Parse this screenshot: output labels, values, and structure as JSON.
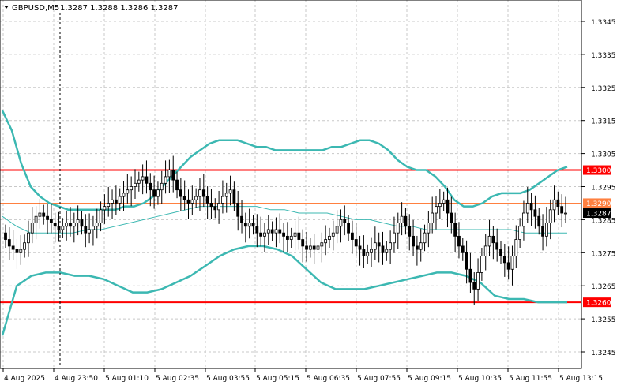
{
  "header": {
    "symbol_label": "GBPUSD,M5",
    "ohlc": "1.3287 1.3288 1.3286 1.3287"
  },
  "colors": {
    "background": "#ffffff",
    "grid": "#c8c8c8",
    "candles": "#000000",
    "bollinger": "#3cb8b2",
    "ma": "#3cb8b2",
    "resistance": "#ff0000",
    "pivot": "#ff8040",
    "current_price": "#000000"
  },
  "chart_data": {
    "type": "candlestick",
    "title": "GBPUSD,M5",
    "ylim": [
      1.324,
      1.3352
    ],
    "y_ticks": [
      "1.3345",
      "1.3335",
      "1.3325",
      "1.3315",
      "1.3305",
      "1.3295",
      "1.3285",
      "1.3275",
      "1.3265",
      "1.3255",
      "1.3245"
    ],
    "x_ticks": [
      "4 Aug 2025",
      "4 Aug 23:50",
      "5 Aug 01:10",
      "5 Aug 02:35",
      "5 Aug 03:55",
      "5 Aug 05:15",
      "5 Aug 06:35",
      "5 Aug 07:55",
      "5 Aug 09:15",
      "5 Aug 10:35",
      "5 Aug 11:55",
      "5 Aug 13:15"
    ],
    "levels": [
      {
        "value": 1.33,
        "label": "1.3300",
        "color": "#ff0000"
      },
      {
        "value": 1.329,
        "label": "1.3290",
        "color": "#ff8040"
      },
      {
        "value": 1.326,
        "label": "1.3260",
        "color": "#ff0000"
      }
    ],
    "current_price": {
      "value": 1.3287,
      "label": "1.3287"
    },
    "close_series": [
      1.3279,
      1.3277,
      1.3276,
      1.3275,
      1.3276,
      1.3278,
      1.3281,
      1.3284,
      1.3286,
      1.3287,
      1.3286,
      1.3285,
      1.3284,
      1.3283,
      1.3282,
      1.3283,
      1.3284,
      1.3283,
      1.3284,
      1.3285,
      1.3283,
      1.3281,
      1.3282,
      1.3283,
      1.3284,
      1.3288,
      1.3289,
      1.329,
      1.3291,
      1.329,
      1.3292,
      1.3293,
      1.3294,
      1.3295,
      1.3296,
      1.3297,
      1.3298,
      1.3296,
      1.3294,
      1.3292,
      1.3294,
      1.3296,
      1.3298,
      1.33,
      1.3297,
      1.3294,
      1.3292,
      1.3291,
      1.329,
      1.3291,
      1.3292,
      1.3294,
      1.3292,
      1.329,
      1.3289,
      1.3288,
      1.329,
      1.3292,
      1.3293,
      1.3294,
      1.329,
      1.3286,
      1.3284,
      1.3283,
      1.3284,
      1.3283,
      1.3281,
      1.328,
      1.3281,
      1.3282,
      1.3281,
      1.3282,
      1.3281,
      1.328,
      1.3279,
      1.328,
      1.3281,
      1.3279,
      1.3277,
      1.3276,
      1.3277,
      1.3276,
      1.3277,
      1.3278,
      1.3279,
      1.328,
      1.3281,
      1.3283,
      1.3285,
      1.3284,
      1.3281,
      1.3279,
      1.3277,
      1.3276,
      1.3274,
      1.3275,
      1.3276,
      1.3278,
      1.3277,
      1.3275,
      1.3276,
      1.3278,
      1.3281,
      1.3284,
      1.3286,
      1.3283,
      1.328,
      1.3277,
      1.3276,
      1.3278,
      1.3281,
      1.3284,
      1.3287,
      1.3289,
      1.329,
      1.3291,
      1.3287,
      1.3284,
      1.328,
      1.3277,
      1.3275,
      1.327,
      1.3266,
      1.3264,
      1.3269,
      1.3274,
      1.3277,
      1.328,
      1.3278,
      1.3276,
      1.3274,
      1.3272,
      1.327,
      1.3274,
      1.3279,
      1.3283,
      1.3287,
      1.329,
      1.3288,
      1.3286,
      1.3283,
      1.328,
      1.3284,
      1.3288,
      1.3291,
      1.3289,
      1.3287,
      1.3287
    ],
    "bollinger_upper": [
      1.3318,
      1.3312,
      1.3302,
      1.3295,
      1.3292,
      1.329,
      1.3289,
      1.3288,
      1.3288,
      1.3288,
      1.3288,
      1.3288,
      1.3288,
      1.3289,
      1.3289,
      1.329,
      1.3292,
      1.3295,
      1.3298,
      1.3301,
      1.3304,
      1.3306,
      1.3308,
      1.3309,
      1.3309,
      1.3309,
      1.3308,
      1.3307,
      1.3307,
      1.3306,
      1.3306,
      1.3306,
      1.3306,
      1.3306,
      1.3306,
      1.3307,
      1.3307,
      1.3308,
      1.3309,
      1.3309,
      1.3308,
      1.3306,
      1.3303,
      1.3301,
      1.33,
      1.33,
      1.3298,
      1.3295,
      1.3291,
      1.3289,
      1.3289,
      1.329,
      1.3292,
      1.3293,
      1.3293,
      1.3293,
      1.3294,
      1.3296,
      1.3298,
      1.33,
      1.3301
    ],
    "bollinger_middle": [
      1.3286,
      1.3283,
      1.3281,
      1.3281,
      1.3281,
      1.3281,
      1.3282,
      1.3282,
      1.3283,
      1.3284,
      1.3285,
      1.3286,
      1.3287,
      1.3288,
      1.3289,
      1.3289,
      1.3289,
      1.3289,
      1.3289,
      1.3288,
      1.3288,
      1.3287,
      1.3287,
      1.3287,
      1.3286,
      1.3285,
      1.3285,
      1.3284,
      1.3283,
      1.3283,
      1.3282,
      1.3282,
      1.3282,
      1.3282,
      1.3282,
      1.3282,
      1.3282,
      1.3281,
      1.3281,
      1.3281,
      1.3281
    ],
    "bollinger_lower": [
      1.325,
      1.3265,
      1.3268,
      1.3269,
      1.3269,
      1.3268,
      1.3268,
      1.3267,
      1.3265,
      1.3263,
      1.3263,
      1.3264,
      1.3266,
      1.3268,
      1.3271,
      1.3274,
      1.3276,
      1.3277,
      1.3277,
      1.3276,
      1.3274,
      1.327,
      1.3266,
      1.3264,
      1.3264,
      1.3264,
      1.3265,
      1.3266,
      1.3267,
      1.3268,
      1.3269,
      1.3269,
      1.3268,
      1.3266,
      1.3262,
      1.3261,
      1.3261,
      1.326,
      1.326,
      1.326
    ]
  }
}
